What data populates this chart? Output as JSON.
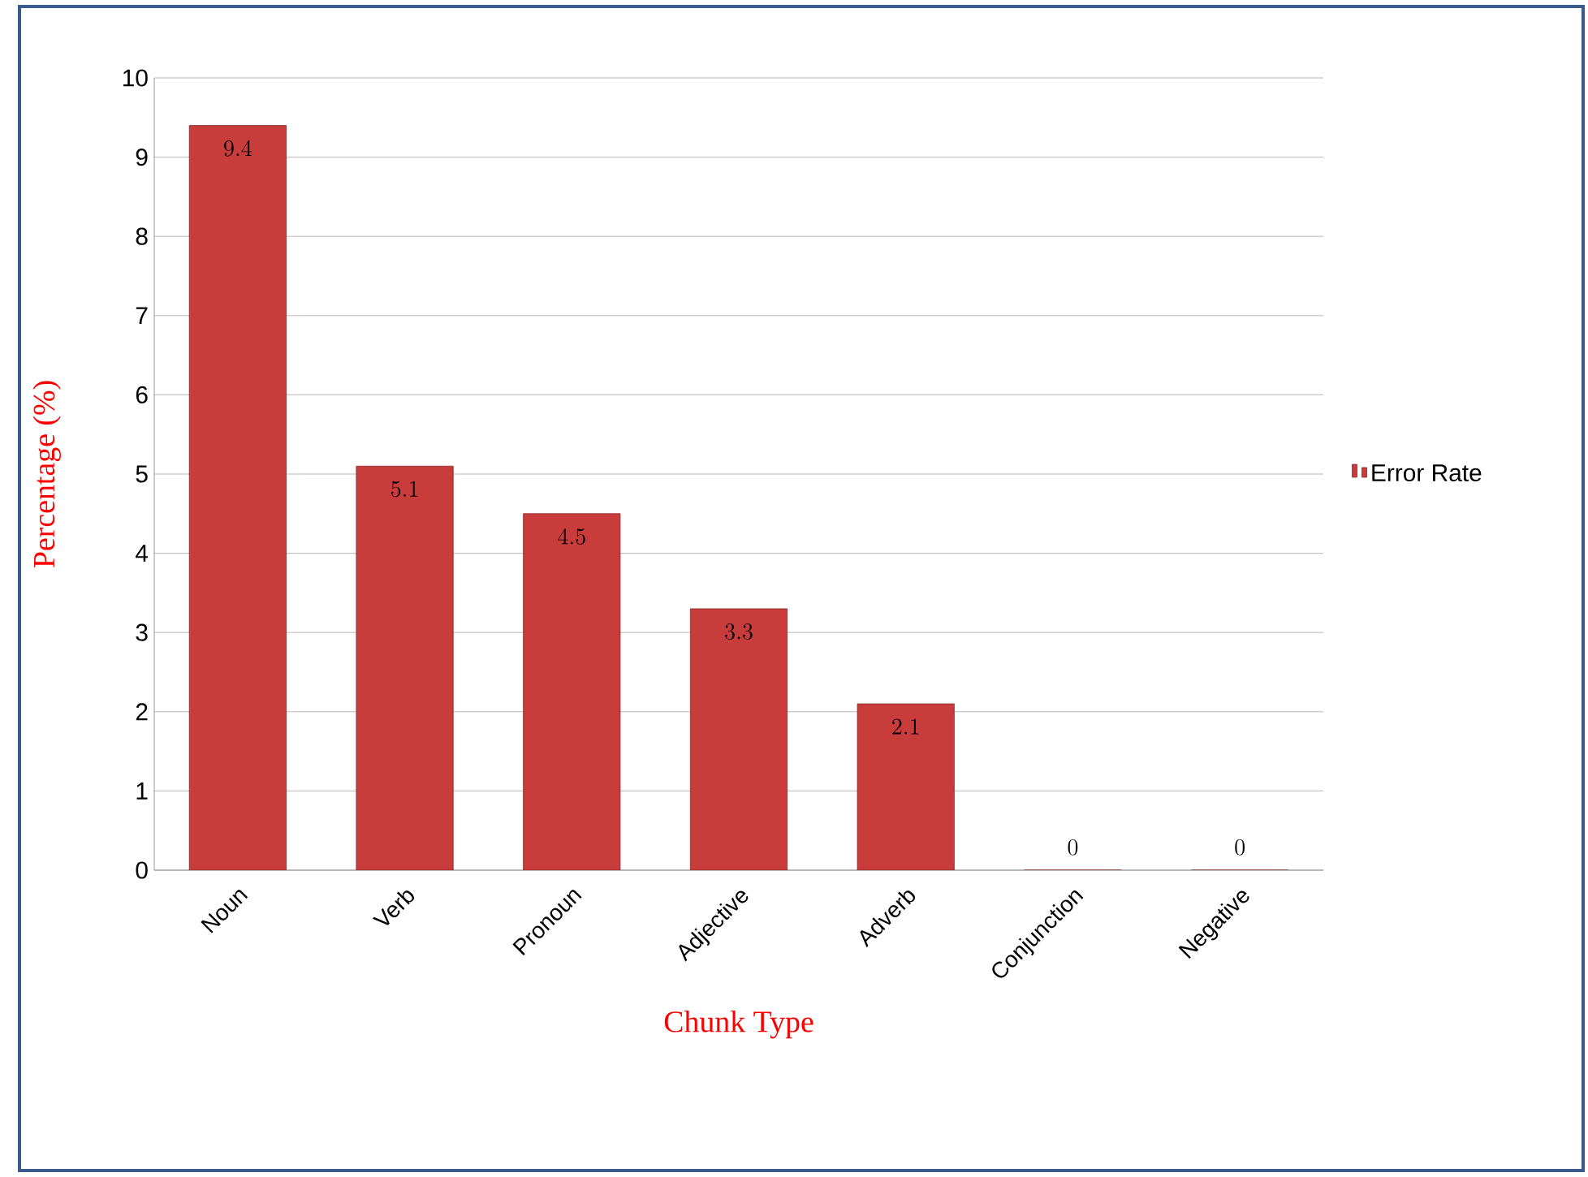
{
  "chart_data": {
    "type": "bar",
    "xlabel": "Chunk Type",
    "ylabel": "Percentage  (%)",
    "categories": [
      "Noun",
      "Verb",
      "Pronoun",
      "Adjective",
      "Adverb",
      "Conjunction",
      "Negative"
    ],
    "series": [
      {
        "name": "Error Rate",
        "color": "#c83c3c",
        "values": [
          9.4,
          5.1,
          4.5,
          3.3,
          2.1,
          0,
          0
        ]
      }
    ],
    "ylim": [
      0,
      10
    ],
    "yticks": [
      0,
      1,
      2,
      3,
      4,
      5,
      6,
      7,
      8,
      9,
      10
    ],
    "grid": "y",
    "legend": "right",
    "data_labels": true
  }
}
